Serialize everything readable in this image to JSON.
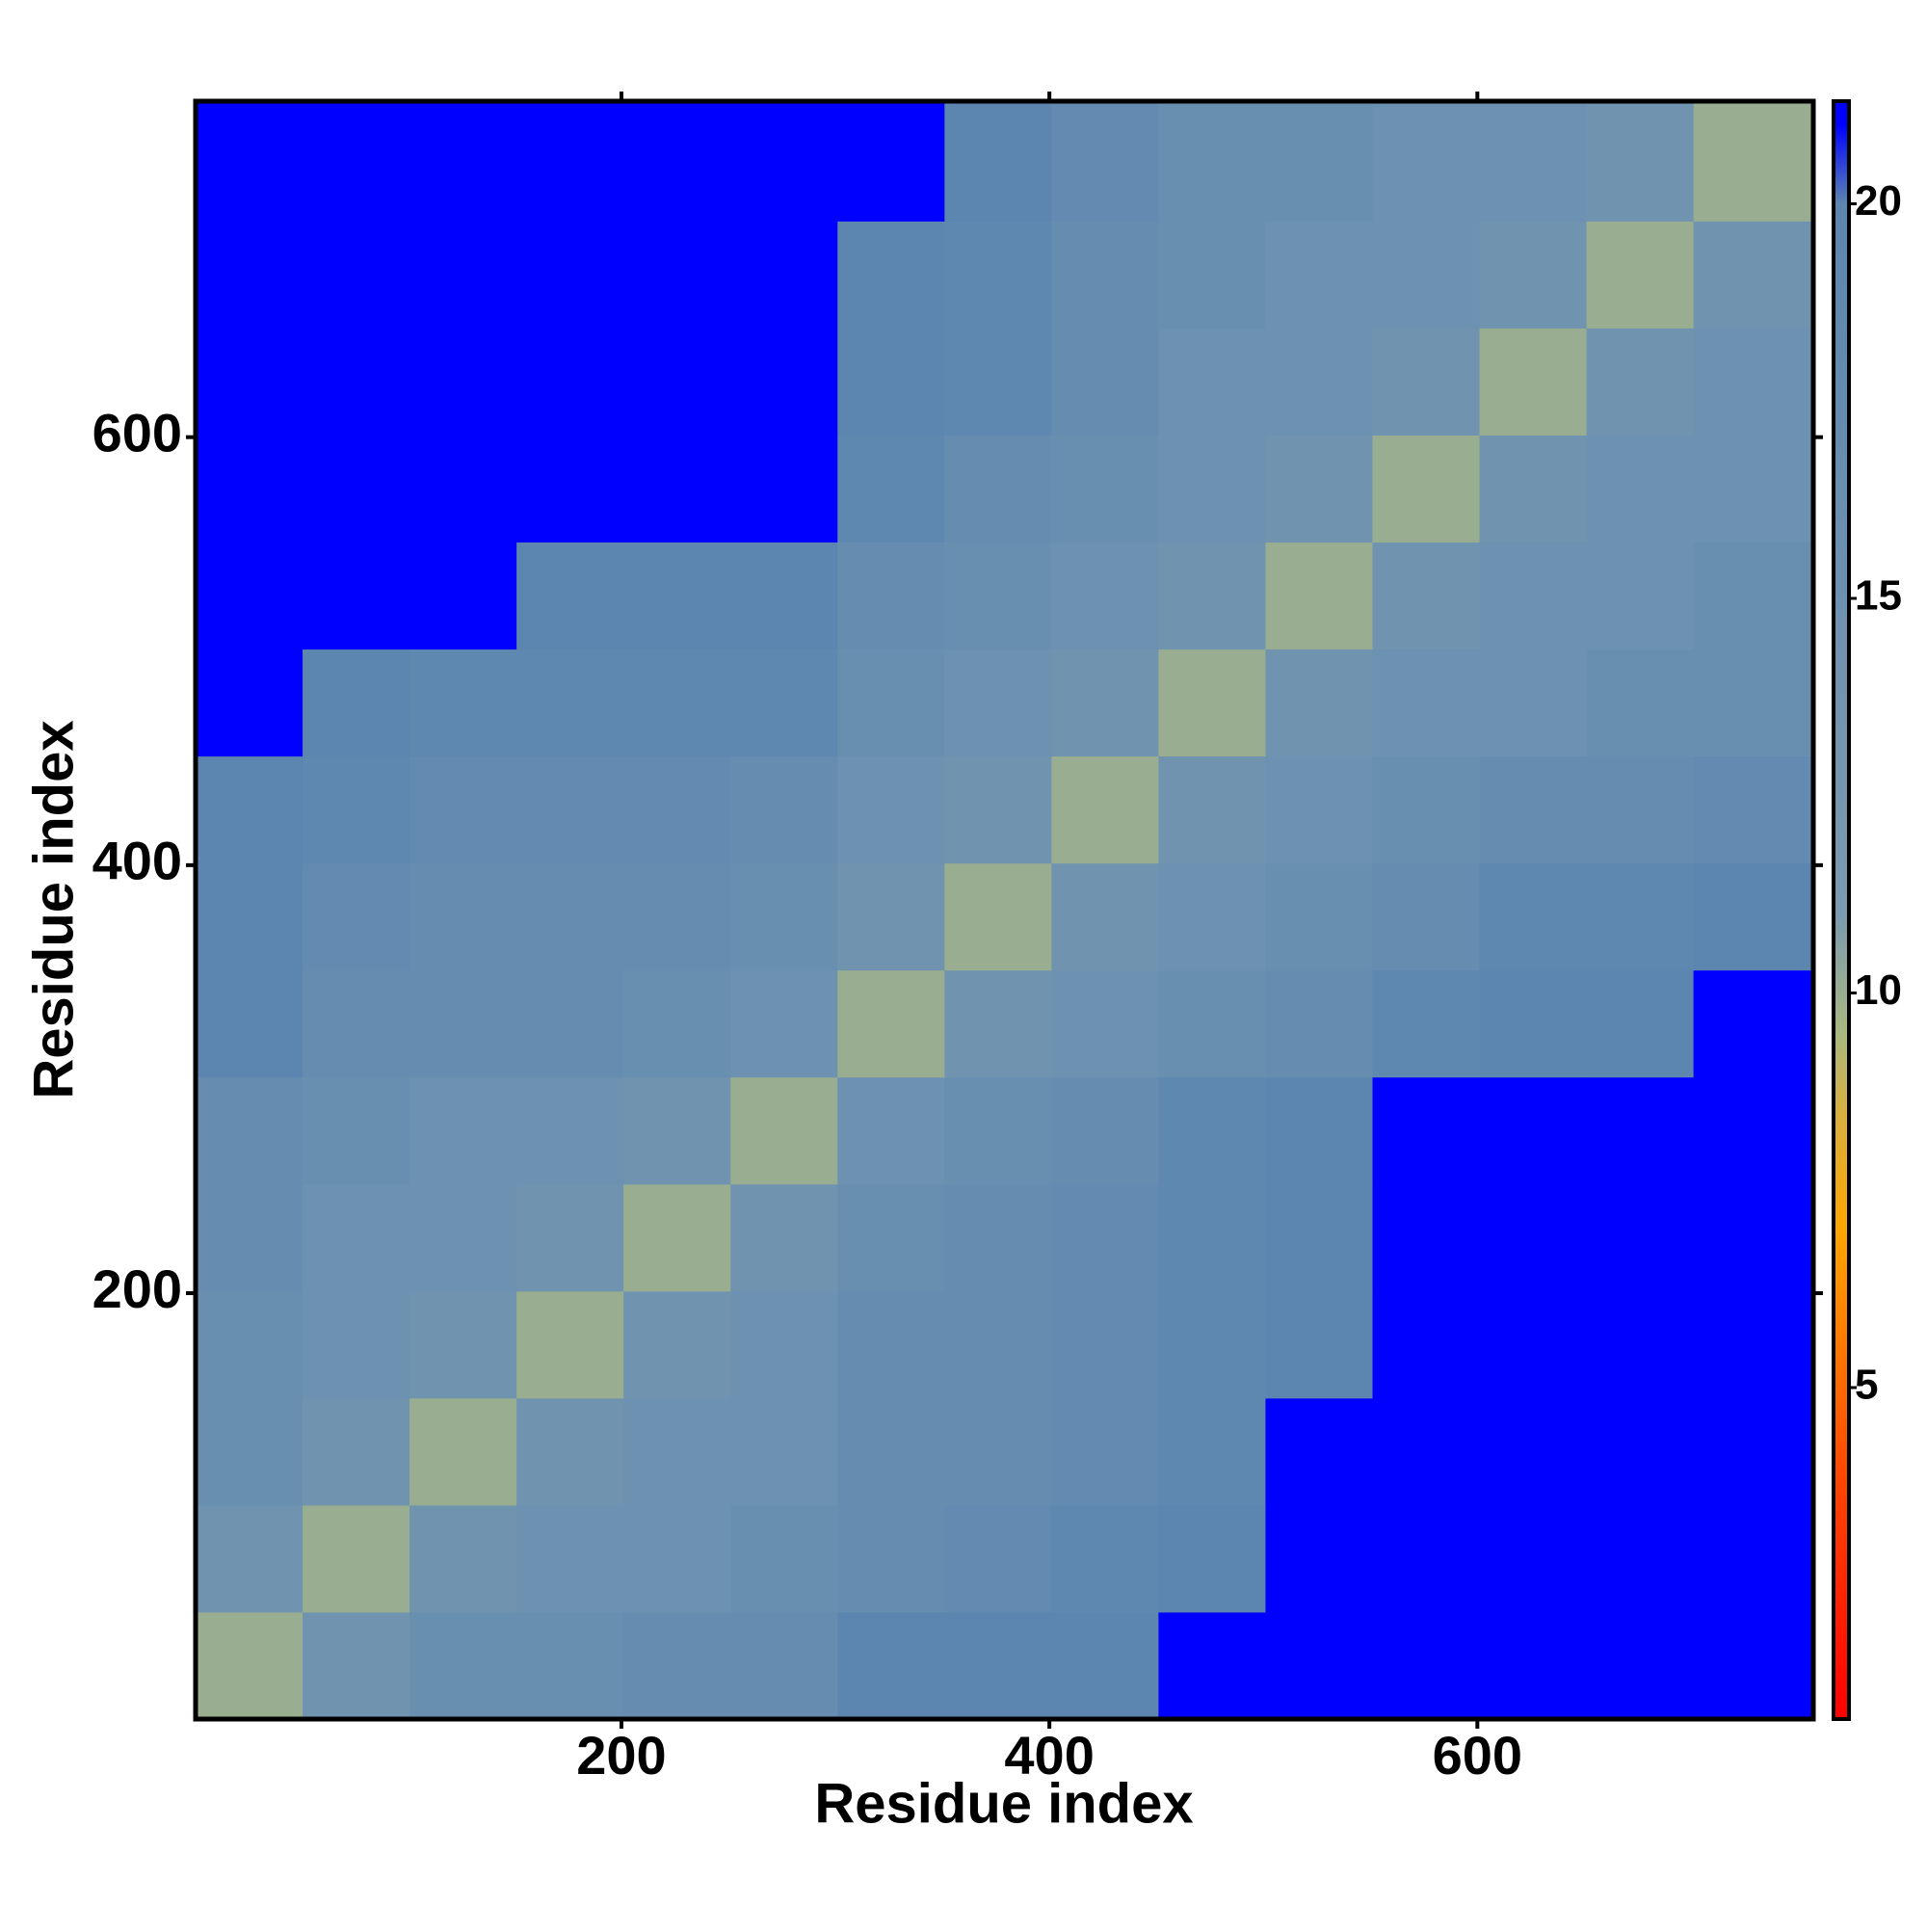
{
  "chart_data": {
    "type": "heatmap",
    "x_label": "Residue index",
    "y_label": "Residue index",
    "x_bins": [
      1,
      51,
      101,
      151,
      201,
      251,
      301,
      351,
      401,
      451,
      501,
      551,
      601,
      651,
      701,
      757
    ],
    "y_bins": [
      1,
      51,
      101,
      151,
      201,
      251,
      301,
      351,
      401,
      451,
      501,
      551,
      601,
      651,
      701,
      757
    ],
    "z": [
      [
        10,
        14,
        16,
        16,
        17,
        17,
        20,
        20,
        20,
        21,
        21,
        21,
        21,
        21,
        21
      ],
      [
        14,
        10,
        14,
        15,
        15,
        16,
        17,
        18,
        19,
        20,
        21,
        21,
        21,
        21,
        21
      ],
      [
        16,
        14,
        10,
        14,
        15,
        15,
        17,
        17,
        18,
        19,
        21,
        21,
        21,
        21,
        21
      ],
      [
        16,
        15,
        14,
        10,
        14,
        15,
        17,
        17,
        18,
        19,
        20,
        21,
        21,
        21,
        21
      ],
      [
        17,
        15,
        15,
        14,
        10,
        14,
        16,
        17,
        18,
        19,
        20,
        21,
        21,
        21,
        21
      ],
      [
        17,
        16,
        15,
        15,
        14,
        10,
        15,
        16,
        17,
        19,
        20,
        21,
        21,
        21,
        21
      ],
      [
        20,
        17,
        17,
        17,
        16,
        15,
        10,
        14,
        15,
        16,
        17,
        19,
        20,
        20,
        21
      ],
      [
        20,
        18,
        17,
        17,
        17,
        16,
        14,
        10,
        14,
        15,
        16,
        17,
        19,
        19,
        20
      ],
      [
        20,
        19,
        18,
        18,
        18,
        17,
        15,
        14,
        10,
        14,
        15,
        16,
        17,
        17,
        18
      ],
      [
        21,
        20,
        19,
        19,
        19,
        19,
        16,
        15,
        14,
        10,
        14,
        15,
        15,
        16,
        16
      ],
      [
        21,
        21,
        21,
        20,
        20,
        20,
        17,
        16,
        15,
        14,
        10,
        14,
        15,
        15,
        16
      ],
      [
        21,
        21,
        21,
        21,
        21,
        21,
        19,
        17,
        16,
        15,
        14,
        10,
        14,
        15,
        15
      ],
      [
        21,
        21,
        21,
        21,
        21,
        21,
        20,
        19,
        17,
        15,
        15,
        14,
        10,
        14,
        15
      ],
      [
        21,
        21,
        21,
        21,
        21,
        21,
        20,
        19,
        17,
        16,
        15,
        15,
        14,
        10,
        14
      ],
      [
        21,
        21,
        21,
        21,
        21,
        21,
        21,
        20,
        18,
        16,
        16,
        15,
        15,
        14,
        10
      ]
    ],
    "xlim": [
      1,
      757
    ],
    "ylim": [
      1,
      757
    ],
    "xticks": [
      200,
      400,
      600
    ],
    "yticks": [
      200,
      400,
      600
    ],
    "clim": [
      0.8,
      21.3
    ],
    "cticks": [
      5,
      10,
      15,
      20
    ],
    "colorscale": [
      [
        0.8,
        "#ff0000"
      ],
      [
        4,
        "#ff4a00"
      ],
      [
        7,
        "#ffa500"
      ],
      [
        8.5,
        "#d8b040"
      ],
      [
        9.5,
        "#a8b880"
      ],
      [
        11,
        "#7a9ab0"
      ],
      [
        20,
        "#5c86b0"
      ],
      [
        21,
        "#0000ff"
      ]
    ]
  }
}
